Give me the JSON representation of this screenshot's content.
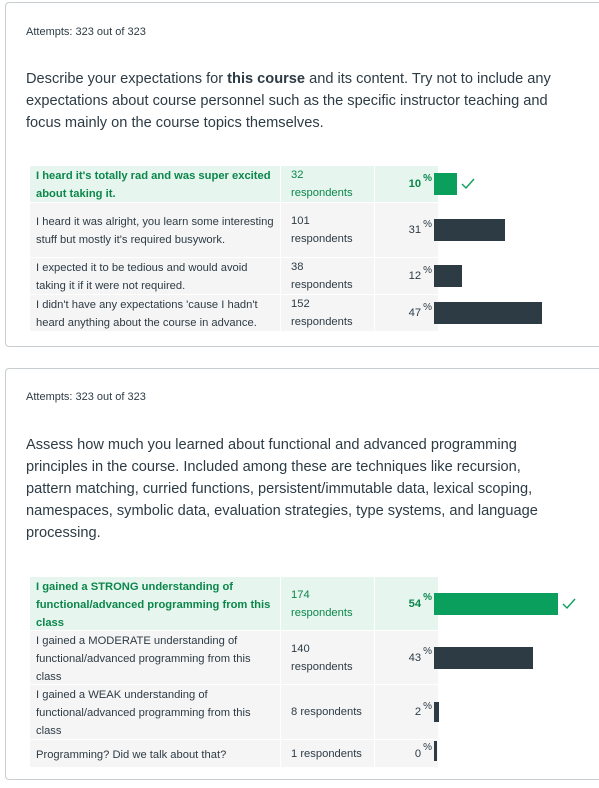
{
  "questions": [
    {
      "attempts": "Attempts: 323 out of 323",
      "text_pre": "Describe your expectations for ",
      "text_bold": "this course",
      "text_post": " and its content. Try not to include any expectations about course personnel such as the specific instructor teaching and focus mainly on the course topics themselves.",
      "answers": [
        {
          "label": "I heard it's totally rad and was super excited about taking it.",
          "respondents": "32 respondents",
          "percent": "10",
          "value": 0.1,
          "correct": true
        },
        {
          "label": "I heard it was alright, you learn some interesting stuff but mostly it's required busywork.",
          "respondents": "101 respondents",
          "percent": "31",
          "value": 0.31,
          "correct": false
        },
        {
          "label": "I expected it to be tedious and would avoid taking it if it were not required.",
          "respondents": "38 respondents",
          "percent": "12",
          "value": 0.12,
          "correct": false
        },
        {
          "label": "I didn't have any expectations 'cause I hadn't heard anything about the course in advance.",
          "respondents": "152 respondents",
          "percent": "47",
          "value": 0.47,
          "correct": false
        }
      ]
    },
    {
      "attempts": "Attempts: 323 out of 323",
      "text_pre": "Assess how much you learned about functional and advanced programming principles in the course. Included among these are techniques like recursion, pattern matching, curried functions, persistent/immutable data, lexical scoping, namespaces, symbolic data, evaluation strategies, type systems, and language processing.",
      "text_bold": "",
      "text_post": "",
      "answers": [
        {
          "label": "I gained a STRONG understanding of functional/advanced programming from this class",
          "respondents": "174 respondents",
          "percent": "54",
          "value": 0.54,
          "correct": true
        },
        {
          "label": "I gained a MODERATE understanding of functional/advanced programming from this class",
          "respondents": "140 respondents",
          "percent": "43",
          "value": 0.43,
          "correct": false
        },
        {
          "label": "I gained a WEAK understanding of functional/advanced programming from this class",
          "respondents": "8 respondents",
          "percent": "2",
          "value": 0.02,
          "correct": false
        },
        {
          "label": "Programming? Did we talk about that?",
          "respondents": "1 respondents",
          "percent": "0",
          "value": 0.003,
          "correct": false
        }
      ]
    }
  ],
  "percent_symbol": "%",
  "colors": {
    "correct": "#0b9f5d",
    "bar": "#2d3b45",
    "correct_bg": "#e6f5ee"
  },
  "icons": {
    "correct": "check-icon"
  }
}
